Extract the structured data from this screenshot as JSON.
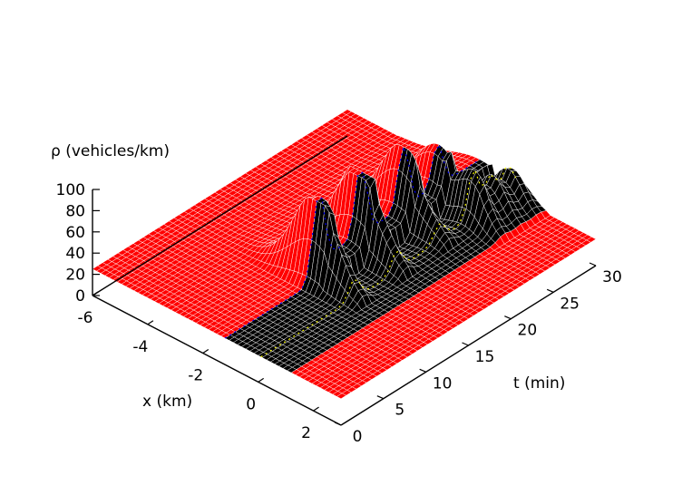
{
  "chart_data": {
    "type": "surface",
    "zlabel": "ρ (vehicles/km)",
    "xlabel": "x (km)",
    "ylabel": "t (min)",
    "x_ticks": [
      "-6",
      "-4",
      "-2",
      "0",
      "2"
    ],
    "t_ticks": [
      "0",
      "5",
      "10",
      "15",
      "20",
      "25",
      "30"
    ],
    "z_ticks": [
      "0",
      "20",
      "40",
      "60",
      "80",
      "100"
    ],
    "xlim": [
      -6,
      3
    ],
    "tlim": [
      0,
      30
    ],
    "zlim": [
      0,
      100
    ],
    "grid": false,
    "series": [
      {
        "color": "#ff0000",
        "x_range": [
          -6,
          -1.2
        ],
        "base_density": 25,
        "peak_times": [
          11,
          16,
          21,
          25
        ],
        "peak_values": [
          100,
          100,
          85,
          65
        ]
      },
      {
        "color": "#000000",
        "x_range": [
          -1.2,
          1.2
        ],
        "base_density": 28,
        "peak_times": [
          25,
          27,
          29
        ],
        "peak_values": [
          70,
          62,
          58
        ]
      },
      {
        "color": "#ff0000",
        "x_range": [
          1.2,
          3
        ],
        "base_density": 25
      }
    ],
    "colors": {
      "inflow": "#ff0000",
      "on_ramp": "#000000",
      "outflow": "#ff0000",
      "trace_blue": "#0000ff",
      "trace_yellow": "#ffff00"
    }
  }
}
